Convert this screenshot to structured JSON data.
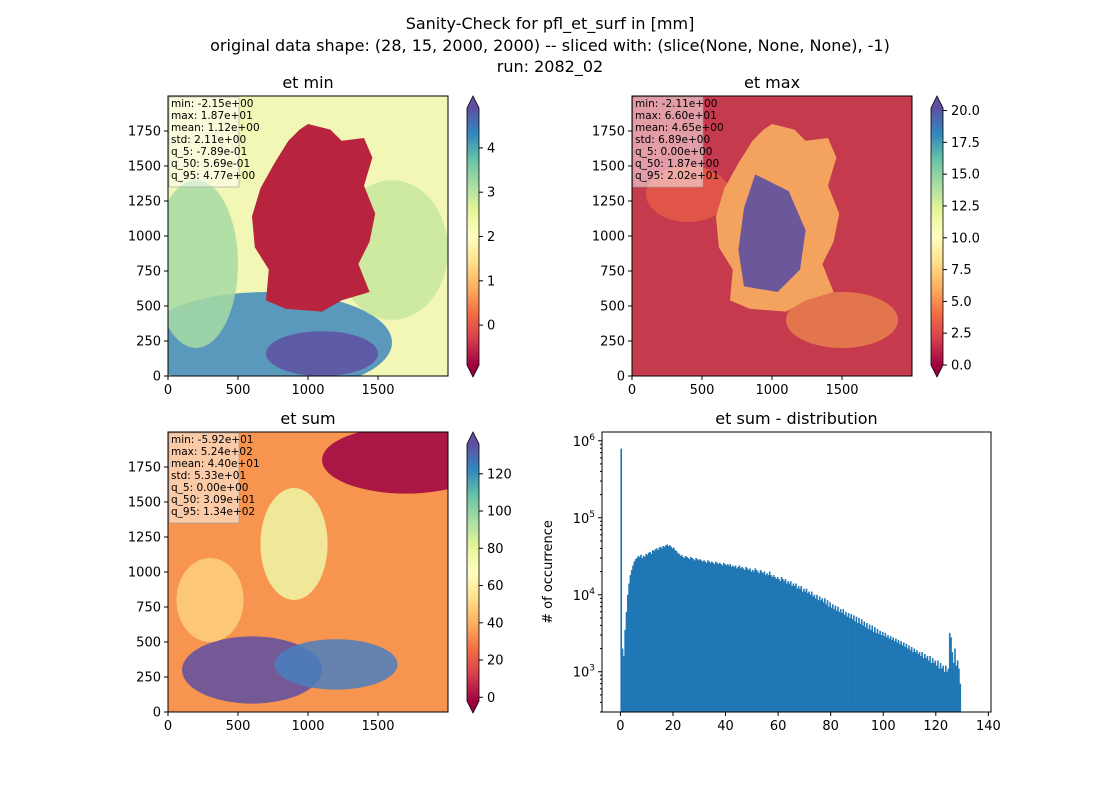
{
  "suptitle": [
    "Sanity-Check for pfl_et_surf in [mm]",
    "original data shape: (28, 15, 2000, 2000) -- sliced with: (slice(None, None, None), -1)",
    "run: 2082_02"
  ],
  "colormap": "Spectral",
  "colors": {
    "hist_bar": "#1f77b4",
    "stats_box_bg": "#ffffff",
    "map_extension_low": "#9e0142",
    "map_extension_high": "#5e4fa2"
  },
  "chart_data": [
    {
      "type": "heatmap",
      "title": "et min",
      "xlim": [
        0,
        2000
      ],
      "ylim": [
        0,
        2000
      ],
      "xticks": [
        0,
        500,
        1000,
        1500
      ],
      "yticks": [
        0,
        250,
        500,
        750,
        1000,
        1250,
        1500,
        1750
      ],
      "colorbar": {
        "vmin": -0.9,
        "vmax": 4.9,
        "ticks": [
          0,
          1,
          2,
          3,
          4
        ],
        "extend": "both"
      },
      "stats": [
        "min: -2.15e+00",
        "max: 1.87e+01",
        "mean: 1.12e+00",
        "std: 2.11e+00",
        "q_5: -7.89e-01",
        "q_50: 5.69e-01",
        "q_95: 4.77e+00"
      ]
    },
    {
      "type": "heatmap",
      "title": "et max",
      "xlim": [
        0,
        2000
      ],
      "ylim": [
        0,
        2000
      ],
      "xticks": [
        0,
        500,
        1000,
        1500
      ],
      "yticks": [
        0,
        250,
        500,
        750,
        1000,
        1250,
        1500,
        1750
      ],
      "colorbar": {
        "vmin": 0,
        "vmax": 20.2,
        "ticks": [
          "0.0",
          "2.5",
          "5.0",
          "7.5",
          "10.0",
          "12.5",
          "15.0",
          "17.5",
          "20.0"
        ],
        "extend": "both"
      },
      "stats": [
        "min: -2.11e+00",
        "max: 6.60e+01",
        "mean: 4.65e+00",
        "std: 6.89e+00",
        "q_5: 0.00e+00",
        "q_50: 1.87e+00",
        "q_95: 2.02e+01"
      ]
    },
    {
      "type": "heatmap",
      "title": "et sum",
      "xlim": [
        0,
        2000
      ],
      "ylim": [
        0,
        2000
      ],
      "xticks": [
        0,
        500,
        1000,
        1500
      ],
      "yticks": [
        0,
        250,
        500,
        750,
        1000,
        1250,
        1500,
        1750
      ],
      "colorbar": {
        "vmin": -2,
        "vmax": 136,
        "ticks": [
          0,
          20,
          40,
          60,
          80,
          100,
          120
        ],
        "extend": "both"
      },
      "stats": [
        "min: -5.92e+01",
        "max: 5.24e+02",
        "mean: 4.40e+01",
        "std: 5.33e+01",
        "q_5: 0.00e+00",
        "q_50: 3.09e+01",
        "q_95: 1.34e+02"
      ]
    },
    {
      "type": "bar",
      "title": "et sum - distribution",
      "xlabel": "",
      "ylabel": "# of occurrence",
      "xlim": [
        -7,
        141
      ],
      "xticks": [
        0,
        20,
        40,
        60,
        80,
        100,
        120,
        140
      ],
      "yscale": "log",
      "ylim": [
        300,
        1300000
      ],
      "yticks": [
        1000,
        10000,
        100000,
        1000000
      ],
      "ytick_labels": [
        "10^3",
        "10^4",
        "10^5",
        "10^6"
      ],
      "bin_start": 0,
      "bin_width": 0.5,
      "counts": [
        790000,
        2000,
        1600,
        3500,
        6000,
        10000,
        14000,
        18000,
        21000,
        24000,
        27000,
        29000,
        30000,
        32000,
        31000,
        33000,
        30000,
        32000,
        31000,
        34000,
        33000,
        35000,
        36000,
        34000,
        38000,
        37000,
        39000,
        40000,
        38000,
        41000,
        42000,
        40000,
        43000,
        42000,
        44000,
        45000,
        43000,
        44000,
        42000,
        40000,
        41000,
        38000,
        37000,
        35000,
        34000,
        32000,
        33000,
        31000,
        30000,
        32000,
        31000,
        30000,
        29000,
        31000,
        30000,
        29000,
        28000,
        30000,
        29000,
        28000,
        29000,
        28000,
        27000,
        28000,
        27000,
        26000,
        28000,
        27000,
        26000,
        27000,
        26000,
        25000,
        27000,
        26000,
        25000,
        26000,
        25000,
        24000,
        26000,
        25000,
        24000,
        25000,
        24000,
        25000,
        23000,
        24000,
        23000,
        24000,
        22000,
        23000,
        24000,
        22000,
        23000,
        22000,
        21000,
        23000,
        22000,
        21000,
        22000,
        20000,
        21000,
        20000,
        22000,
        21000,
        20000,
        19000,
        21000,
        20000,
        19000,
        20000,
        18000,
        19000,
        18000,
        20000,
        18000,
        17000,
        18000,
        17000,
        16000,
        17000,
        16000,
        15000,
        17000,
        16000,
        15000,
        16000,
        14000,
        15000,
        14000,
        15000,
        13000,
        14000,
        13000,
        14000,
        12000,
        13000,
        12000,
        13000,
        11000,
        12000,
        11000,
        12000,
        10500,
        11000,
        10000,
        11000,
        9500,
        10000,
        9000,
        10000,
        8500,
        9500,
        8500,
        9000,
        8000,
        9000,
        7500,
        8500,
        7000,
        8000,
        6800,
        7500,
        6500,
        7200,
        6200,
        7000,
        6000,
        6500,
        5800,
        6500,
        5500,
        6000,
        5200,
        5800,
        5000,
        5600,
        4800,
        5400,
        4500,
        5200,
        4300,
        5000,
        4200,
        4800,
        4000,
        4500,
        3800,
        4300,
        3600,
        4100,
        3500,
        4000,
        3300,
        3800,
        3200,
        3600,
        3100,
        3400,
        3000,
        3300,
        2900,
        3200,
        2800,
        3000,
        2700,
        2900,
        2600,
        2800,
        2500,
        2700,
        2400,
        2600,
        2300,
        2500,
        2200,
        2400,
        2100,
        2300,
        2000,
        2200,
        1900,
        2100,
        1800,
        2000,
        1800,
        1900,
        1700,
        1800,
        1600,
        1800,
        1500,
        1700,
        1500,
        1600,
        1400,
        1600,
        1300,
        1500,
        1300,
        1400,
        1200,
        1400,
        1100,
        1300,
        1100,
        1200,
        1000,
        1200,
        1000,
        1100,
        3200,
        2800,
        1800,
        1300,
        2000,
        1200,
        1400,
        1100,
        700
      ]
    }
  ]
}
